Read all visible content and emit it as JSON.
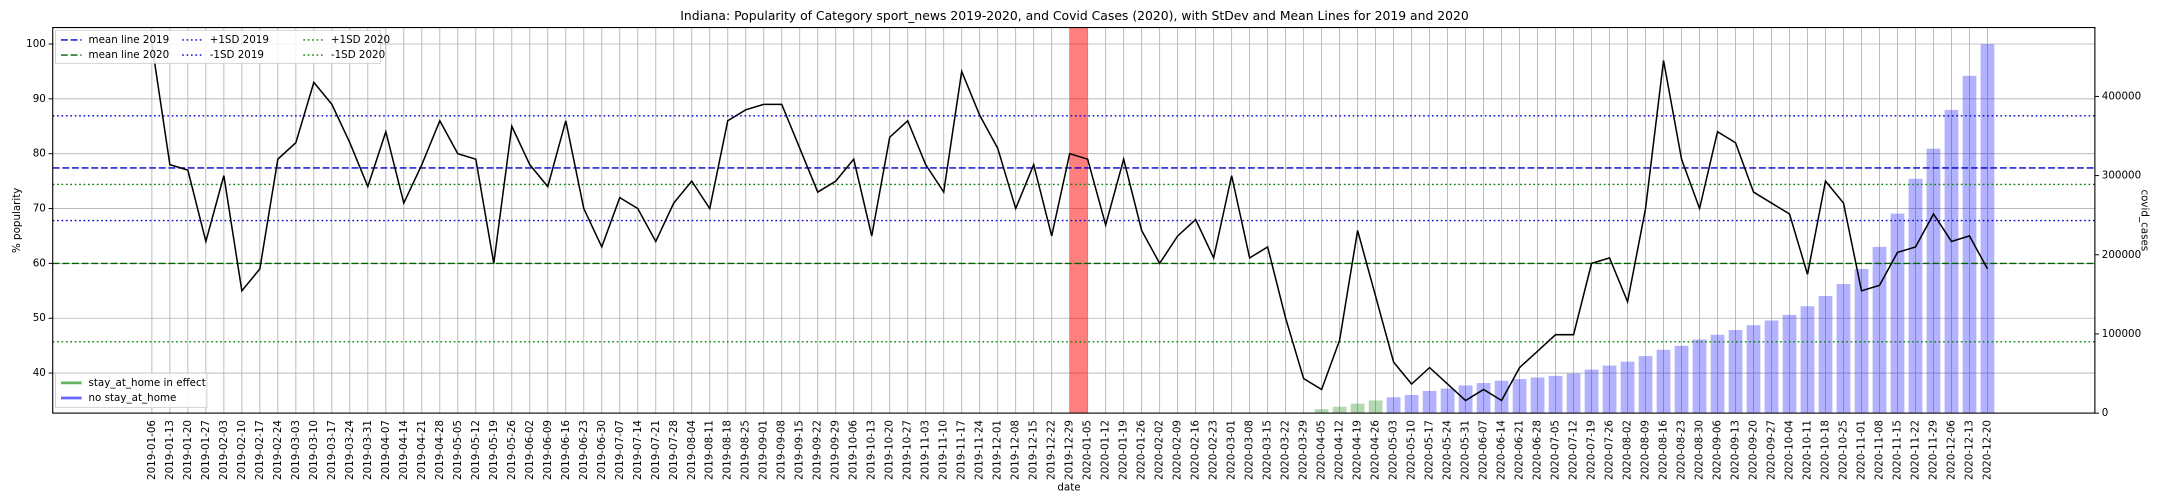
{
  "chart_data": {
    "type": "line",
    "title": "Indiana: Popularity of Category sport_news 2019-2020, and Covid Cases (2020), with StDev and Mean Lines for 2019 and 2020",
    "x_label": "date",
    "y_label": "% popularity",
    "y2_label": "covid_cases",
    "categories": [
      "2019-01-06",
      "2019-01-13",
      "2019-01-20",
      "2019-01-27",
      "2019-02-03",
      "2019-02-10",
      "2019-02-17",
      "2019-02-24",
      "2019-03-03",
      "2019-03-10",
      "2019-03-17",
      "2019-03-24",
      "2019-03-31",
      "2019-04-07",
      "2019-04-14",
      "2019-04-21",
      "2019-04-28",
      "2019-05-05",
      "2019-05-12",
      "2019-05-19",
      "2019-05-26",
      "2019-06-02",
      "2019-06-09",
      "2019-06-16",
      "2019-06-23",
      "2019-06-30",
      "2019-07-07",
      "2019-07-14",
      "2019-07-21",
      "2019-07-28",
      "2019-08-04",
      "2019-08-11",
      "2019-08-18",
      "2019-08-25",
      "2019-09-01",
      "2019-09-08",
      "2019-09-15",
      "2019-09-22",
      "2019-09-29",
      "2019-10-06",
      "2019-10-13",
      "2019-10-20",
      "2019-10-27",
      "2019-11-03",
      "2019-11-10",
      "2019-11-17",
      "2019-11-24",
      "2019-12-01",
      "2019-12-08",
      "2019-12-15",
      "2019-12-22",
      "2019-12-29",
      "2020-01-05",
      "2020-01-12",
      "2020-01-19",
      "2020-01-26",
      "2020-02-02",
      "2020-02-09",
      "2020-02-16",
      "2020-02-23",
      "2020-03-01",
      "2020-03-08",
      "2020-03-15",
      "2020-03-22",
      "2020-03-29",
      "2020-04-05",
      "2020-04-12",
      "2020-04-19",
      "2020-04-26",
      "2020-05-03",
      "2020-05-10",
      "2020-05-17",
      "2020-05-24",
      "2020-05-31",
      "2020-06-07",
      "2020-06-14",
      "2020-06-21",
      "2020-06-28",
      "2020-07-05",
      "2020-07-12",
      "2020-07-19",
      "2020-07-26",
      "2020-08-02",
      "2020-08-09",
      "2020-08-16",
      "2020-08-23",
      "2020-08-30",
      "2020-09-06",
      "2020-09-13",
      "2020-09-20",
      "2020-09-27",
      "2020-10-04",
      "2020-10-11",
      "2020-10-18",
      "2020-10-25",
      "2020-11-01",
      "2020-11-08",
      "2020-11-15",
      "2020-11-22",
      "2020-11-29",
      "2020-12-06",
      "2020-12-13",
      "2020-12-20"
    ],
    "popularity": {
      "color": "#000000",
      "values": [
        100,
        78,
        77,
        64,
        76,
        55,
        59,
        79,
        82,
        93,
        89,
        82,
        74,
        84,
        71,
        78,
        86,
        80,
        79,
        60,
        85,
        78,
        74,
        86,
        70,
        63,
        72,
        70,
        64,
        71,
        75,
        70,
        86,
        88,
        89,
        89,
        81,
        73,
        75,
        79,
        65,
        83,
        86,
        78,
        73,
        95,
        87,
        81,
        70,
        78,
        65,
        80,
        79,
        67,
        79,
        66,
        60,
        65,
        68,
        61,
        76,
        61,
        63,
        50,
        39,
        37,
        46,
        66,
        54,
        42,
        38,
        41,
        38,
        35,
        37,
        35,
        41,
        44,
        47,
        47,
        60,
        61,
        53,
        70,
        97,
        79,
        70,
        84,
        82,
        73,
        71,
        69,
        58,
        75,
        71,
        55,
        56,
        62,
        63,
        69,
        64,
        65,
        59
      ]
    },
    "series": [
      {
        "name": "stay_at_home in effect",
        "color": "#008000",
        "axis": "y2",
        "values": [
          null,
          null,
          null,
          null,
          null,
          null,
          null,
          null,
          null,
          null,
          null,
          null,
          null,
          null,
          null,
          null,
          null,
          null,
          null,
          null,
          null,
          null,
          null,
          null,
          null,
          null,
          null,
          null,
          null,
          null,
          null,
          null,
          null,
          null,
          null,
          null,
          null,
          null,
          null,
          null,
          null,
          null,
          null,
          null,
          null,
          null,
          null,
          null,
          null,
          null,
          null,
          null,
          null,
          null,
          null,
          null,
          null,
          null,
          null,
          null,
          null,
          null,
          null,
          null,
          null,
          5000,
          8000,
          12000,
          16000,
          null,
          null,
          null,
          null,
          null,
          null,
          null,
          null,
          null,
          null,
          null,
          null,
          null,
          null,
          null,
          null,
          null,
          null,
          null,
          null,
          null,
          null,
          null,
          null,
          null,
          null,
          null,
          null,
          null,
          null,
          null,
          null,
          null,
          null
        ]
      },
      {
        "name": "no stay_at_home",
        "color": "#0000ff",
        "axis": "y2",
        "values": [
          null,
          null,
          null,
          null,
          null,
          null,
          null,
          null,
          null,
          null,
          null,
          null,
          null,
          null,
          null,
          null,
          null,
          null,
          null,
          null,
          null,
          null,
          null,
          null,
          null,
          null,
          null,
          null,
          null,
          null,
          null,
          null,
          null,
          null,
          null,
          null,
          null,
          null,
          null,
          null,
          null,
          null,
          null,
          null,
          null,
          null,
          null,
          null,
          null,
          null,
          null,
          null,
          null,
          null,
          null,
          null,
          null,
          null,
          null,
          null,
          null,
          null,
          null,
          null,
          null,
          null,
          null,
          null,
          null,
          20000,
          23000,
          28000,
          31000,
          35000,
          38000,
          41000,
          43000,
          45000,
          47000,
          50000,
          55000,
          60000,
          65000,
          72000,
          80000,
          85000,
          93000,
          99000,
          105000,
          111000,
          117000,
          124000,
          135000,
          148000,
          163000,
          182000,
          210000,
          252000,
          296000,
          334000,
          383000,
          426000,
          466000
        ]
      }
    ],
    "reference_lines": [
      {
        "name": "mean line 2019",
        "value": 77.4,
        "color": "#0000cc",
        "style": "dashed"
      },
      {
        "name": "mean line 2020",
        "value": 60,
        "color": "#006400",
        "style": "dashed"
      },
      {
        "name": "+1SD 2019",
        "value": 86.9,
        "color": "#0000cc",
        "style": "dotted"
      },
      {
        "name": "-1SD 2019",
        "value": 67.8,
        "color": "#0000cc",
        "style": "dotted"
      },
      {
        "name": "+1SD 2020",
        "value": 74.4,
        "color": "#008000",
        "style": "dotted"
      },
      {
        "name": "-1SD 2020",
        "value": 45.7,
        "color": "#008000",
        "style": "dotted"
      }
    ],
    "highlight": {
      "from": "2019-12-29",
      "to": "2020-01-05",
      "color": "#ff0000"
    },
    "ylim": [
      32.7,
      103
    ],
    "yticks": [
      40,
      50,
      60,
      70,
      80,
      90,
      100
    ],
    "y2lim": [
      0,
      487000
    ],
    "y2ticks": [
      0,
      100000,
      200000,
      300000,
      400000
    ],
    "grid": true
  }
}
